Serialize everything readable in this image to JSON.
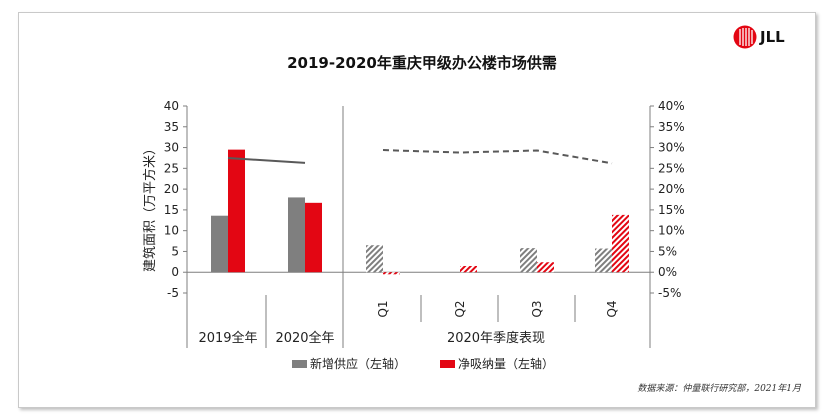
{
  "logo": {
    "text": "JLL"
  },
  "source": "数据来源：仲量联行研究部，2021年1月",
  "chart_data": {
    "type": "bar",
    "title": "2019-2020年重庆甲级办公楼市场供需",
    "ylabel": "建筑面积（万平方米）",
    "ylim": [
      -5,
      40
    ],
    "y_ticks": [
      "40",
      "35",
      "30",
      "25",
      "20",
      "15",
      "10",
      "5",
      "0",
      "-5"
    ],
    "y2lim": [
      -0.05,
      0.4
    ],
    "y2_ticks": [
      "40%",
      "35%",
      "30%",
      "25%",
      "20%",
      "15%",
      "10%",
      "5%",
      "0%",
      "-5%"
    ],
    "groups": [
      "2019全年",
      "2020全年",
      "2020年季度表现"
    ],
    "categories": [
      "2019全年",
      "2020全年",
      "Q1",
      "Q2",
      "Q3",
      "Q4"
    ],
    "series": [
      {
        "name": "新增供应（左轴）",
        "axis": "left",
        "color": "#7f7f7f",
        "values": [
          13.6,
          18.0,
          6.5,
          0,
          5.8,
          5.7
        ]
      },
      {
        "name": "净吸纳量（左轴）",
        "axis": "left",
        "color": "#e30613",
        "values": [
          29.5,
          16.7,
          -0.5,
          1.5,
          2.4,
          13.8
        ]
      },
      {
        "axis": "right",
        "values": [
          0.275,
          0.263,
          0.294,
          0.288,
          0.293,
          0.262
        ]
      }
    ],
    "hatched_categories": [
      "Q1",
      "Q2",
      "Q3",
      "Q4"
    ],
    "grid": false,
    "legend_position": "bottom"
  }
}
